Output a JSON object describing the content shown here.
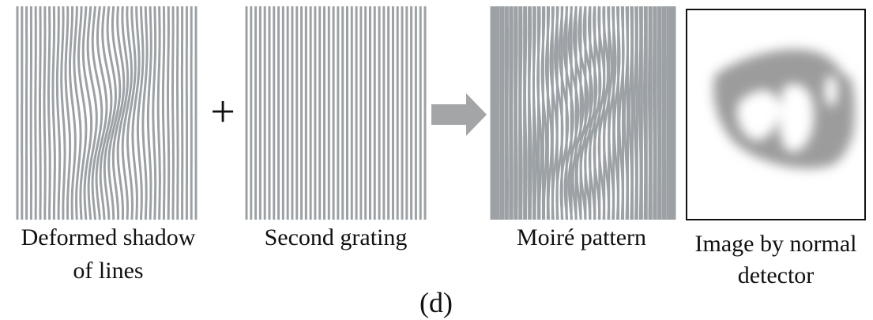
{
  "panels": [
    {
      "caption": [
        "Deformed shadow",
        "of lines"
      ]
    },
    {
      "caption": [
        "Second grating"
      ]
    },
    {
      "caption": [
        "Moiré pattern"
      ]
    },
    {
      "caption": [
        "Image by normal",
        "detector"
      ]
    }
  ],
  "operator": "+",
  "label": "(d)"
}
